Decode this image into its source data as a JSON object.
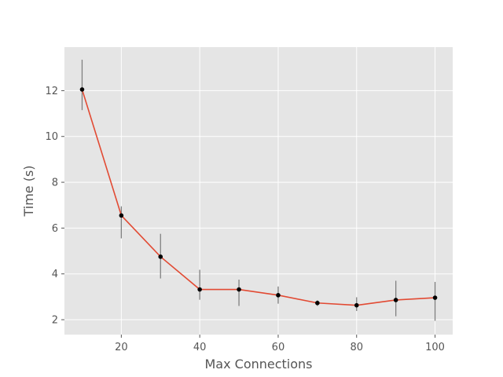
{
  "chart_data": {
    "type": "line",
    "title": "",
    "xlabel": "Max Connections",
    "ylabel": "Time (s)",
    "xlim": [
      5.5,
      104.5
    ],
    "ylim": [
      1.35,
      13.9
    ],
    "xticks": [
      20,
      40,
      60,
      80,
      100
    ],
    "yticks": [
      2,
      4,
      6,
      8,
      10,
      12
    ],
    "grid": true,
    "style": "ggplot",
    "colors": {
      "background": "#E5E5E5",
      "grid": "#FFFFFF",
      "line": "#E24A33",
      "marker": "#000000",
      "errorbar": "#808080",
      "tick_text": "#555555"
    },
    "series": [
      {
        "x": [
          10,
          20,
          30,
          40,
          50,
          60,
          70,
          80,
          90,
          100
        ],
        "values": [
          12.05,
          6.55,
          4.75,
          3.32,
          3.32,
          3.07,
          2.73,
          2.63,
          2.86,
          2.96
        ],
        "err_low": [
          11.15,
          5.55,
          3.8,
          2.87,
          2.6,
          2.7,
          2.6,
          2.38,
          2.15,
          1.95
        ],
        "err_high": [
          13.35,
          6.95,
          5.75,
          4.18,
          3.75,
          3.45,
          2.85,
          2.98,
          3.7,
          3.65
        ]
      }
    ]
  }
}
